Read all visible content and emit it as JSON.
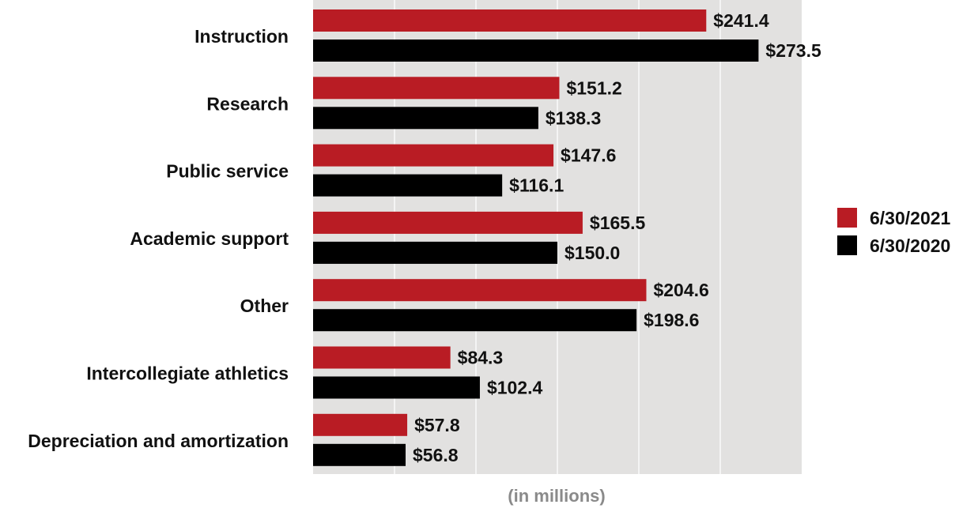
{
  "chart_data": {
    "type": "bar",
    "orientation": "horizontal",
    "xlabel": "(in millions)",
    "xlim": [
      0,
      300
    ],
    "grid": true,
    "legend_position": "right",
    "categories": [
      "Instruction",
      "Research",
      "Public service",
      "Academic support",
      "Other",
      "Intercollegiate athletics",
      "Depreciation and amortization"
    ],
    "series": [
      {
        "name": "6/30/2021",
        "color": "#b91c24",
        "values": [
          241.4,
          151.2,
          147.6,
          165.5,
          204.6,
          84.3,
          57.8
        ],
        "labels": [
          "$241.4",
          "$151.2",
          "$147.6",
          "$165.5",
          "$204.6",
          "$84.3",
          "$57.8"
        ]
      },
      {
        "name": "6/30/2020",
        "color": "#000000",
        "values": [
          273.5,
          138.3,
          116.1,
          150.0,
          198.6,
          102.4,
          56.8
        ],
        "labels": [
          "$273.5",
          "$138.3",
          "$116.1",
          "$150.0",
          "$198.6",
          "$102.4",
          "$56.8"
        ]
      }
    ],
    "plot_background": "#e2e1e0",
    "gridline_color": "#f4f4f4"
  }
}
